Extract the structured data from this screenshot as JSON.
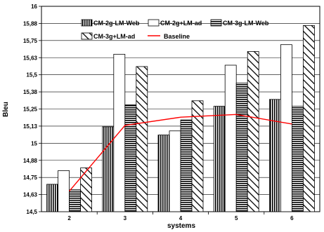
{
  "chart_data": {
    "type": "bar",
    "xlabel": "systems",
    "ylabel": "Bleu",
    "categories": [
      "2",
      "3",
      "4",
      "5",
      "6"
    ],
    "ylim": [
      14.5,
      16
    ],
    "yticks": [
      "14,5",
      "14,63",
      "14,75",
      "14,88",
      "15",
      "15,13",
      "15,25",
      "15,38",
      "15,5",
      "15,63",
      "15,75",
      "15,88",
      "16"
    ],
    "grid": "horizontal",
    "legend_position": "top-left",
    "series": [
      {
        "name": "CM-2g-LM-Web",
        "pattern": "vertical-stripes",
        "values": [
          14.7,
          15.12,
          15.06,
          15.27,
          15.32
        ]
      },
      {
        "name": "CM-2g+LM-ad",
        "pattern": "white",
        "values": [
          14.8,
          15.65,
          15.09,
          15.57,
          15.72
        ]
      },
      {
        "name": "CM-3g-LM-Web",
        "pattern": "horizontal-stripes",
        "values": [
          14.66,
          15.28,
          15.17,
          15.44,
          15.27
        ]
      },
      {
        "name": "CM-3g+LM-ad",
        "pattern": "diagonal-stripes",
        "values": [
          14.82,
          15.56,
          15.31,
          15.67,
          15.86
        ]
      }
    ],
    "line_series": {
      "name": "Baseline",
      "color": "#ff0000",
      "values": [
        14.65,
        15.13,
        15.19,
        15.21,
        15.14
      ]
    }
  }
}
